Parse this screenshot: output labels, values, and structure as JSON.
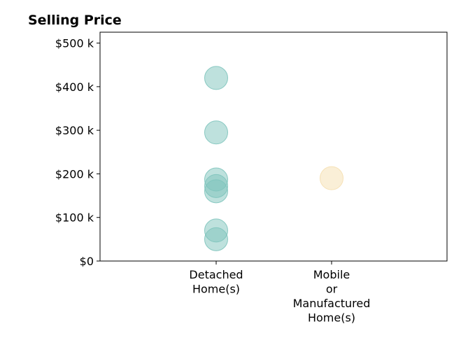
{
  "chart_data": {
    "type": "scatter",
    "title": "Selling Price",
    "xlabel": "",
    "ylabel": "",
    "categories": [
      [
        "Detached",
        "Home(s)"
      ],
      [
        "Mobile",
        "or",
        "Manufactured",
        "Home(s)"
      ]
    ],
    "yticks": [
      0,
      100000,
      200000,
      300000,
      400000,
      500000
    ],
    "ytick_labels": [
      "$0",
      "$100 k",
      "$200 k",
      "$300 k",
      "$400 k",
      "$500 k"
    ],
    "ylim": [
      0,
      525000
    ],
    "grid": false,
    "legend": "none",
    "series": [
      {
        "category_index": 0,
        "color": "#7ec4bc",
        "values": [
          420000,
          295000,
          187000,
          172000,
          160000,
          70000,
          50000
        ]
      },
      {
        "category_index": 1,
        "color": "#f5dfb0",
        "values": [
          190000
        ]
      }
    ]
  }
}
